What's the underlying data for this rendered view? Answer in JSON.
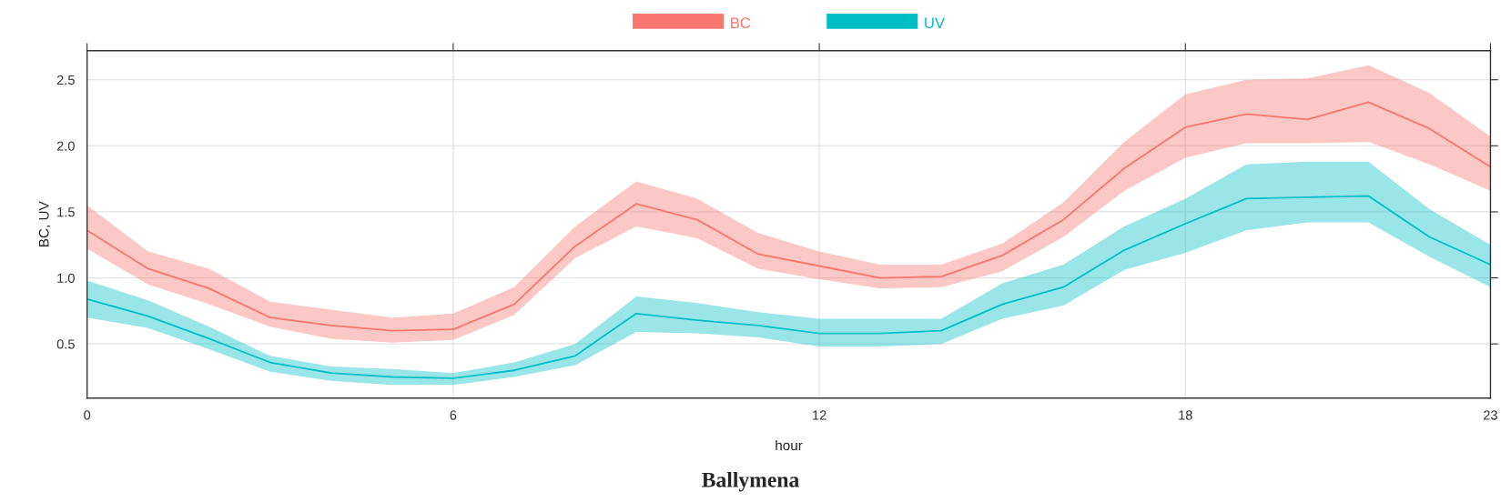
{
  "chart_data": {
    "type": "line",
    "title": "Ballymena",
    "xlabel": "hour",
    "ylabel": "BC, UV",
    "x": [
      0,
      1,
      2,
      3,
      4,
      5,
      6,
      7,
      8,
      9,
      10,
      11,
      12,
      13,
      14,
      15,
      16,
      17,
      18,
      19,
      20,
      21,
      22,
      23
    ],
    "series": [
      {
        "name": "BC",
        "color": "#f8766d",
        "values": [
          1.36,
          1.07,
          0.92,
          0.7,
          0.64,
          0.6,
          0.61,
          0.8,
          1.24,
          1.56,
          1.44,
          1.18,
          1.09,
          1.0,
          1.01,
          1.17,
          1.44,
          1.83,
          2.14,
          2.24,
          2.2,
          2.33,
          2.13,
          1.84
        ],
        "lower": [
          1.22,
          0.95,
          0.8,
          0.63,
          0.54,
          0.51,
          0.53,
          0.72,
          1.15,
          1.39,
          1.3,
          1.07,
          0.99,
          0.92,
          0.93,
          1.05,
          1.31,
          1.66,
          1.91,
          2.02,
          2.02,
          2.03,
          1.86,
          1.66
        ],
        "upper": [
          1.55,
          1.2,
          1.07,
          0.82,
          0.76,
          0.7,
          0.73,
          0.93,
          1.39,
          1.73,
          1.6,
          1.34,
          1.2,
          1.1,
          1.1,
          1.26,
          1.57,
          2.03,
          2.39,
          2.5,
          2.51,
          2.61,
          2.4,
          2.07
        ]
      },
      {
        "name": "UV",
        "color": "#00bfc4",
        "values": [
          0.84,
          0.71,
          0.54,
          0.36,
          0.28,
          0.25,
          0.24,
          0.3,
          0.41,
          0.73,
          0.68,
          0.64,
          0.58,
          0.58,
          0.6,
          0.8,
          0.93,
          1.21,
          1.41,
          1.6,
          1.61,
          1.62,
          1.31,
          1.1
        ],
        "lower": [
          0.7,
          0.62,
          0.46,
          0.29,
          0.22,
          0.19,
          0.19,
          0.25,
          0.34,
          0.59,
          0.58,
          0.55,
          0.48,
          0.48,
          0.5,
          0.69,
          0.79,
          1.06,
          1.19,
          1.36,
          1.42,
          1.42,
          1.16,
          0.93
        ],
        "upper": [
          0.98,
          0.83,
          0.63,
          0.41,
          0.33,
          0.31,
          0.28,
          0.36,
          0.5,
          0.86,
          0.81,
          0.74,
          0.69,
          0.69,
          0.69,
          0.96,
          1.1,
          1.39,
          1.6,
          1.86,
          1.88,
          1.88,
          1.52,
          1.25
        ]
      }
    ],
    "xlim": [
      0,
      23
    ],
    "xticks": [
      0,
      6,
      12,
      18,
      23
    ],
    "ylim": [
      0.09,
      2.72
    ],
    "yticks": [
      0.5,
      {
        "value": 1,
        "label": "1.0"
      },
      1.5,
      {
        "value": 2,
        "label": "2.0"
      },
      2.5
    ],
    "grid": true,
    "legend": "top",
    "marker": "none",
    "line_style": "solid"
  }
}
